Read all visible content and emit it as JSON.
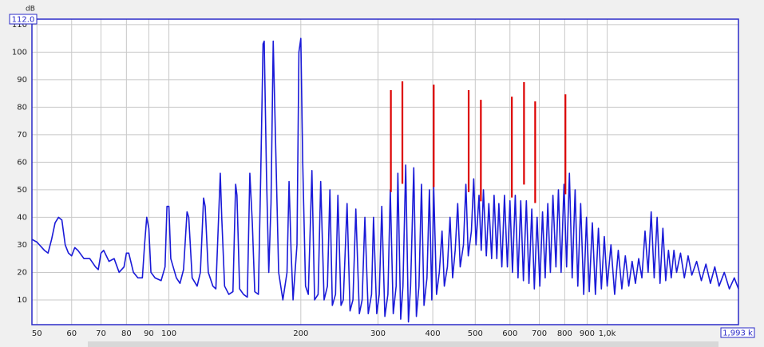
{
  "chart_data": {
    "type": "line",
    "y_axis_label": "dB",
    "ylim_top_label": "112.0",
    "xlim_right_label": "1,993 k",
    "xscale": "log",
    "grid": true,
    "xlim": [
      48.7,
      1993
    ],
    "ylim": [
      1,
      112
    ],
    "xticks": [
      50,
      60,
      70,
      80,
      90,
      100,
      200,
      300,
      400,
      500,
      600,
      700,
      800,
      900,
      {
        "value": 1000,
        "label": "1,0k"
      }
    ],
    "yticks": [
      10,
      20,
      30,
      40,
      50,
      60,
      70,
      80,
      90,
      100,
      110
    ],
    "color": "#1a1ad8",
    "x": [
      48.7,
      50,
      52,
      53,
      54,
      55,
      56,
      57,
      58,
      59,
      60,
      61,
      62,
      64,
      66,
      68,
      69,
      70,
      71,
      73,
      75,
      77,
      79,
      80,
      81,
      83,
      85,
      87,
      88,
      89,
      90,
      91,
      93,
      96,
      98,
      99,
      100,
      101,
      104,
      106,
      108,
      110,
      111,
      113,
      116,
      118,
      120,
      121,
      123,
      126,
      128,
      131,
      132,
      134,
      137,
      140,
      142,
      143,
      145,
      148,
      151,
      153,
      155,
      157,
      160,
      162,
      164,
      165,
      167,
      169,
      171,
      173,
      175,
      178,
      182,
      186,
      188,
      190,
      192,
      196,
      198,
      200,
      202,
      205,
      208,
      212,
      215,
      219,
      222,
      226,
      230,
      233,
      236,
      240,
      243,
      247,
      250,
      255,
      259,
      263,
      267,
      272,
      276,
      280,
      285,
      290,
      293,
      298,
      302,
      306,
      311,
      316,
      320,
      325,
      330,
      333,
      338,
      342,
      347,
      352,
      356,
      362,
      367,
      372,
      377,
      382,
      388,
      393,
      398,
      402,
      408,
      414,
      420,
      425,
      432,
      438,
      444,
      450,
      456,
      462,
      470,
      476,
      482,
      490,
      496,
      502,
      510,
      516,
      522,
      530,
      537,
      545,
      552,
      560,
      566,
      575,
      583,
      592,
      600,
      608,
      617,
      626,
      635,
      644,
      654,
      663,
      673,
      682,
      692,
      702,
      712,
      722,
      732,
      742,
      752,
      764,
      774,
      785,
      797,
      808,
      820,
      832,
      845,
      857,
      870,
      884,
      897,
      910,
      925,
      940,
      955,
      970,
      985,
      1000,
      1020,
      1040,
      1060,
      1080,
      1100,
      1120,
      1140,
      1160,
      1180,
      1200,
      1220,
      1240,
      1260,
      1280,
      1300,
      1320,
      1340,
      1360,
      1380,
      1400,
      1420,
      1440,
      1470,
      1500,
      1530,
      1560,
      1600,
      1640,
      1680,
      1720,
      1760,
      1800,
      1850,
      1900,
      1950,
      1993
    ],
    "values": [
      32,
      31,
      28,
      27,
      32,
      38,
      40,
      39,
      30,
      27,
      26,
      29,
      28,
      25,
      25,
      22,
      21,
      27,
      28,
      24,
      25,
      20,
      22,
      27,
      27,
      20,
      18,
      18,
      30,
      40,
      36,
      20,
      18,
      17,
      22,
      44,
      44,
      25,
      18,
      16,
      21,
      42,
      40,
      18,
      15,
      20,
      47,
      44,
      20,
      15,
      14,
      56,
      40,
      15,
      12,
      13,
      52,
      48,
      14,
      12,
      11,
      56,
      38,
      13,
      12,
      55,
      103,
      104,
      55,
      20,
      45,
      104,
      70,
      20,
      10,
      20,
      53,
      28,
      10,
      30,
      100,
      105,
      60,
      15,
      12,
      57,
      10,
      12,
      53,
      10,
      15,
      50,
      8,
      12,
      48,
      8,
      10,
      45,
      6,
      10,
      43,
      5,
      10,
      40,
      5,
      12,
      40,
      5,
      12,
      44,
      4,
      12,
      50,
      5,
      15,
      56,
      3,
      15,
      59,
      2,
      15,
      58,
      4,
      15,
      52,
      8,
      18,
      50,
      10,
      51,
      12,
      20,
      35,
      15,
      22,
      40,
      18,
      28,
      45,
      22,
      30,
      52,
      26,
      35,
      54,
      30,
      48,
      28,
      50,
      26,
      45,
      25,
      48,
      25,
      45,
      22,
      48,
      22,
      46,
      20,
      48,
      18,
      46,
      17,
      46,
      16,
      43,
      14,
      40,
      15,
      42,
      18,
      45,
      20,
      48,
      22,
      50,
      20,
      52,
      22,
      56,
      18,
      50,
      15,
      45,
      12,
      40,
      13,
      38,
      12,
      36,
      14,
      33,
      15,
      30,
      12,
      28,
      14,
      26,
      15,
      24,
      16,
      25,
      18,
      35,
      20,
      42,
      18,
      40,
      16,
      36,
      17,
      28,
      18,
      28,
      20,
      27,
      18,
      26,
      19,
      24,
      17,
      23,
      16,
      22,
      15,
      20,
      14,
      18,
      14
    ],
    "markers": {
      "color": "#dd0000",
      "x": [
        321,
        341,
        402,
        483,
        515,
        606,
        646,
        685,
        803
      ],
      "top": [
        86.2,
        89.4,
        88.2,
        86.2,
        82.7,
        83.8,
        89.1,
        82.1,
        84.7
      ],
      "bottom": [
        49.2,
        52.2,
        51,
        49.2,
        45.8,
        47.2,
        51.9,
        45.2,
        48.4
      ]
    }
  }
}
